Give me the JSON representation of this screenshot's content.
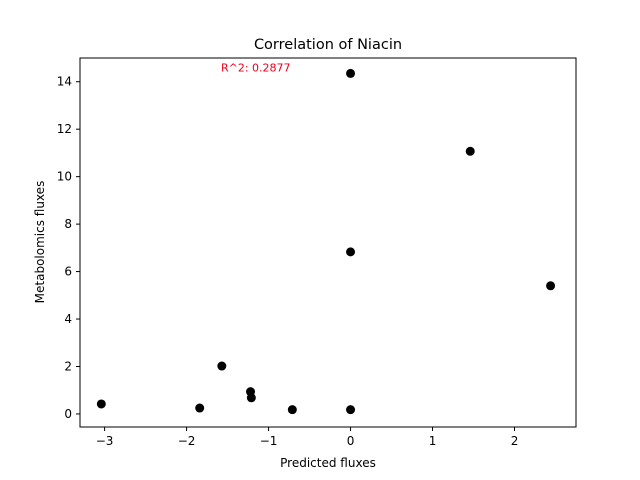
{
  "chart_data": {
    "type": "scatter",
    "title": "Correlation of Niacin",
    "xlabel": "Predicted fluxes",
    "ylabel": "Metabolomics fluxes",
    "xlim": [
      -3.3,
      2.75
    ],
    "ylim": [
      -0.55,
      15.0
    ],
    "xticks": [
      -3,
      -2,
      -1,
      0,
      1,
      2
    ],
    "yticks": [
      0,
      2,
      4,
      6,
      8,
      10,
      12,
      14
    ],
    "xtick_labels": [
      "−3",
      "−2",
      "−1",
      "0",
      "1",
      "2"
    ],
    "ytick_labels": [
      "0",
      "2",
      "4",
      "6",
      "8",
      "10",
      "12",
      "14"
    ],
    "grid": false,
    "marker_color": "#000000",
    "annotation": {
      "text": "R^2: 0.2877",
      "color": "#e8001c",
      "x": -1.58,
      "y": 14.6
    },
    "points": [
      {
        "x": -3.04,
        "y": 0.42
      },
      {
        "x": -1.84,
        "y": 0.25
      },
      {
        "x": -1.57,
        "y": 2.02
      },
      {
        "x": -1.22,
        "y": 0.94
      },
      {
        "x": -1.21,
        "y": 0.68
      },
      {
        "x": -0.71,
        "y": 0.18
      },
      {
        "x": 0.0,
        "y": 14.35
      },
      {
        "x": 0.0,
        "y": 6.83
      },
      {
        "x": 0.0,
        "y": 0.18
      },
      {
        "x": 1.46,
        "y": 11.07
      },
      {
        "x": 2.44,
        "y": 5.4
      }
    ]
  }
}
